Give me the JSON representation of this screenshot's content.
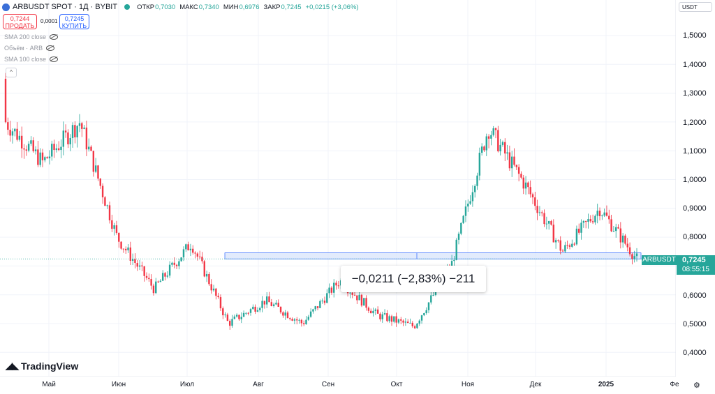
{
  "header": {
    "symbol": "ARBUSDT SPOT · 1Д · BYBIT",
    "open_label": "ОТКР",
    "open": "0,7030",
    "high_label": "МАКС",
    "high": "0,7340",
    "low_label": "МИН",
    "low": "0,6976",
    "close_label": "ЗАКР",
    "close": "0,7245",
    "change": "+0,0215 (+3,06%)"
  },
  "trade": {
    "sell_price": "0,7244",
    "sell_label": "ПРОДАТЬ",
    "spread": "0,0001",
    "buy_price": "0,7245",
    "buy_label": "КУПИТЬ"
  },
  "indicators": [
    "SMA 200 close",
    "Объём · ARB",
    "SMA 100 close"
  ],
  "currency": "USDT",
  "price_axis": [
    "1,5000",
    "1,4000",
    "1,3000",
    "1,2000",
    "1,1000",
    "1,0000",
    "0,9000",
    "0,8000",
    "0,7000",
    "0,6000",
    "0,5000",
    "0,4000"
  ],
  "time_axis": [
    "Май",
    "Июн",
    "Июл",
    "Авг",
    "Сен",
    "Окт",
    "Ноя",
    "Дек",
    "2025",
    "Фе"
  ],
  "last_price": {
    "symbol": "ARBUSDT",
    "price": "0,7245",
    "countdown": "08:55:15"
  },
  "measure_text": "−0,0211 (−2,83%) −211",
  "logo": "TradingView",
  "colors": {
    "up": "#26a69a",
    "down": "#f23645",
    "range_fill": "#dbe6fb",
    "range_border": "#2962ff"
  },
  "chart_data": {
    "type": "candlestick",
    "x_start": "late April 2024",
    "x_end": "January 2025",
    "ylim": [
      0.35,
      1.55
    ],
    "range_band": [
      0.7245,
      0.7456
    ],
    "series": [
      {
        "period": "late Apr",
        "close_est": 1.2
      },
      {
        "period": "May",
        "close_est": 1.06
      },
      {
        "period": "early Jun",
        "close_est": 1.2
      },
      {
        "period": "late Jun",
        "close_est": 0.8
      },
      {
        "period": "early Jul",
        "close_est": 0.62
      },
      {
        "period": "mid Jul",
        "close_est": 0.78
      },
      {
        "period": "early Aug",
        "close_est": 0.5
      },
      {
        "period": "late Aug",
        "close_est": 0.58
      },
      {
        "period": "Sep",
        "close_est": 0.5
      },
      {
        "period": "late Sep",
        "close_est": 0.65
      },
      {
        "period": "Oct",
        "close_est": 0.53
      },
      {
        "period": "early Nov",
        "close_est": 0.49
      },
      {
        "period": "mid Nov",
        "close_est": 0.7
      },
      {
        "period": "early Dec",
        "close_est": 1.18
      },
      {
        "period": "mid Dec",
        "close_est": 0.98
      },
      {
        "period": "late Dec",
        "close_est": 0.75
      },
      {
        "period": "early Jan",
        "close_est": 0.9
      },
      {
        "period": "mid Jan",
        "close_est": 0.7245
      }
    ]
  }
}
